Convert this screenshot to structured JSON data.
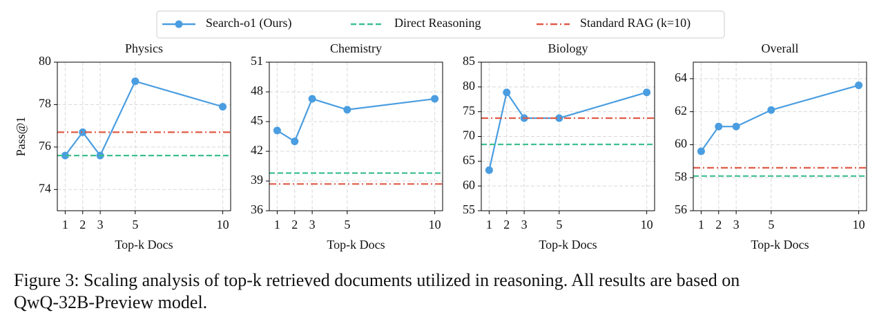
{
  "chart_data": [
    {
      "type": "line",
      "title": "Physics",
      "y_label": "Pass@1",
      "x_label": "Top-k Docs",
      "x": [
        1,
        2,
        3,
        5,
        10
      ],
      "xlim": [
        0.55,
        10.45
      ],
      "xticks": [
        1,
        2,
        3,
        5,
        10
      ],
      "ylim": [
        73,
        80
      ],
      "yticks": [
        74,
        76,
        78,
        80
      ],
      "grid": true,
      "series": [
        {
          "name": "Search-o1 (Ours)",
          "color": "#4a9de0",
          "values": [
            75.6,
            76.7,
            75.6,
            79.1,
            77.9
          ]
        },
        {
          "name": "Direct Reasoning",
          "color": "#3dbf8e",
          "style": "dashed",
          "value": 75.6
        },
        {
          "name": "Standard RAG (k=10)",
          "color": "#e05a45",
          "style": "dashdot",
          "value": 76.7
        }
      ]
    },
    {
      "type": "line",
      "title": "Chemistry",
      "x_label": "Top-k Docs",
      "x": [
        1,
        2,
        3,
        5,
        10
      ],
      "xlim": [
        0.55,
        10.45
      ],
      "xticks": [
        1,
        2,
        3,
        5,
        10
      ],
      "ylim": [
        36,
        51
      ],
      "yticks": [
        36,
        39,
        42,
        45,
        48,
        51
      ],
      "grid": true,
      "series": [
        {
          "name": "Search-o1 (Ours)",
          "color": "#4a9de0",
          "values": [
            44.1,
            43.0,
            47.3,
            46.2,
            47.3
          ]
        },
        {
          "name": "Direct Reasoning",
          "color": "#3dbf8e",
          "style": "dashed",
          "value": 39.8
        },
        {
          "name": "Standard RAG (k=10)",
          "color": "#e05a45",
          "style": "dashdot",
          "value": 38.7
        }
      ]
    },
    {
      "type": "line",
      "title": "Biology",
      "x_label": "Top-k Docs",
      "x": [
        1,
        2,
        3,
        5,
        10
      ],
      "xlim": [
        0.55,
        10.45
      ],
      "xticks": [
        1,
        2,
        3,
        5,
        10
      ],
      "ylim": [
        55,
        85
      ],
      "yticks": [
        55,
        60,
        65,
        70,
        75,
        80,
        85
      ],
      "grid": true,
      "series": [
        {
          "name": "Search-o1 (Ours)",
          "color": "#4a9de0",
          "values": [
            63.2,
            78.9,
            73.7,
            73.7,
            78.9
          ]
        },
        {
          "name": "Direct Reasoning",
          "color": "#3dbf8e",
          "style": "dashed",
          "value": 68.4
        },
        {
          "name": "Standard RAG (k=10)",
          "color": "#e05a45",
          "style": "dashdot",
          "value": 73.7
        }
      ]
    },
    {
      "type": "line",
      "title": "Overall",
      "x_label": "Top-k Docs",
      "x": [
        1,
        2,
        3,
        5,
        10
      ],
      "xlim": [
        0.55,
        10.45
      ],
      "xticks": [
        1,
        2,
        3,
        5,
        10
      ],
      "ylim": [
        56,
        65
      ],
      "yticks": [
        56,
        58,
        60,
        62,
        64
      ],
      "grid": true,
      "series": [
        {
          "name": "Search-o1 (Ours)",
          "color": "#4a9de0",
          "values": [
            59.6,
            61.1,
            61.1,
            62.1,
            63.6
          ]
        },
        {
          "name": "Direct Reasoning",
          "color": "#3dbf8e",
          "style": "dashed",
          "value": 58.1
        },
        {
          "name": "Standard RAG (k=10)",
          "color": "#e05a45",
          "style": "dashdot",
          "value": 58.6
        }
      ]
    }
  ],
  "caption": [
    "Figure 3: Scaling analysis of top-k retrieved documents utilized in reasoning. All results are based on",
    "QwQ-32B-Preview model."
  ]
}
